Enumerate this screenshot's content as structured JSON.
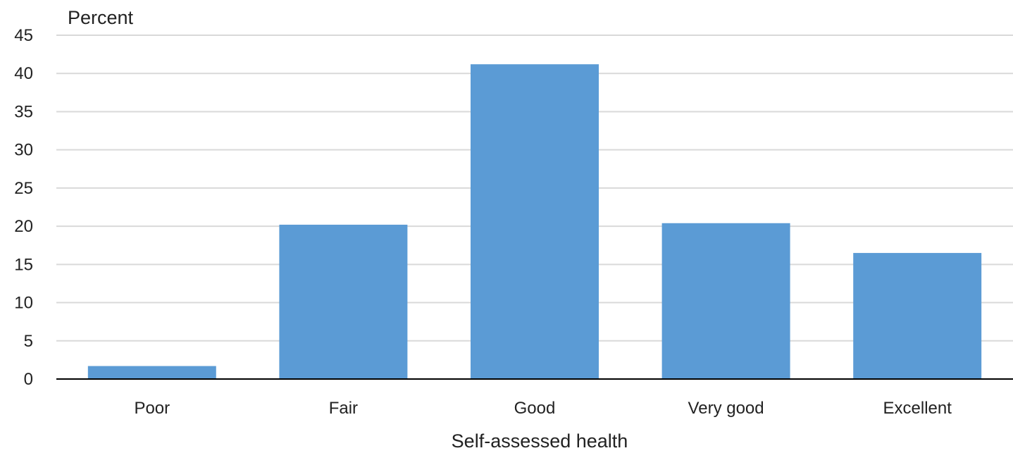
{
  "chart_data": {
    "type": "bar",
    "categories": [
      "Poor",
      "Fair",
      "Good",
      "Very good",
      "Excellent"
    ],
    "values": [
      1.7,
      20.2,
      41.2,
      20.4,
      16.5
    ],
    "ylabel": "Percent",
    "xlabel": "Self-assessed health",
    "ylim": [
      0,
      45
    ],
    "yticks": [
      0,
      5,
      10,
      15,
      20,
      25,
      30,
      35,
      40,
      45
    ],
    "grid": true,
    "bar_color": "#5b9bd5"
  }
}
